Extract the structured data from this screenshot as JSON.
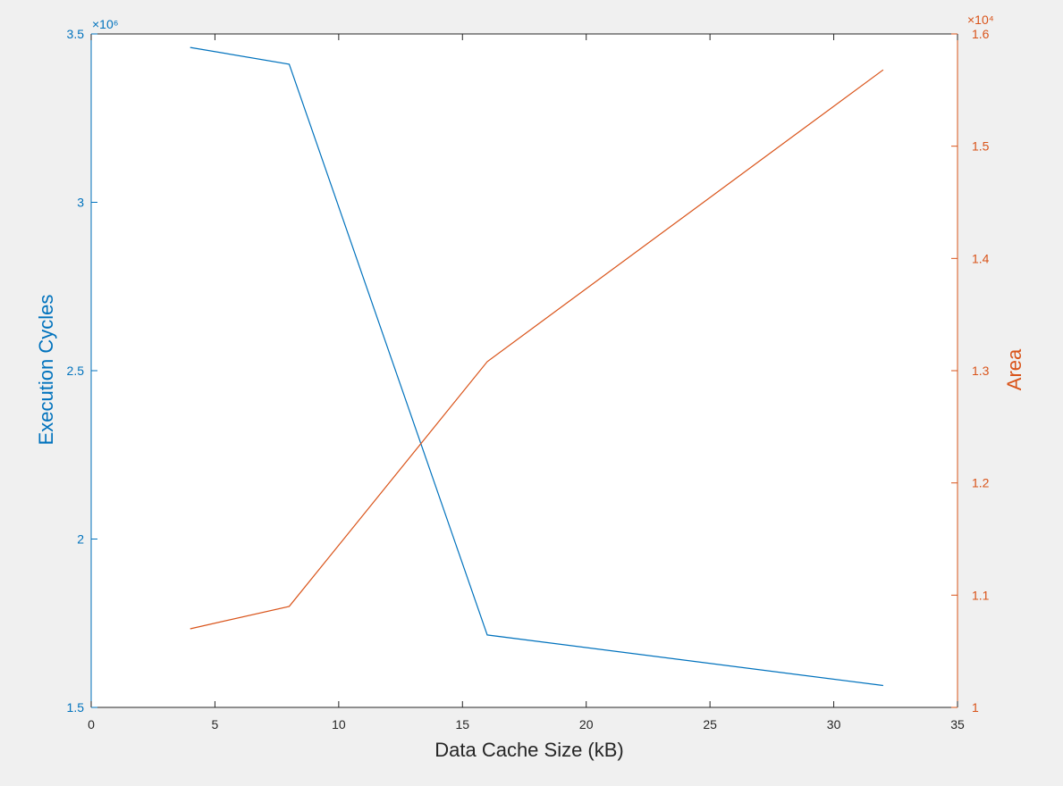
{
  "colors": {
    "left": "#0072bd",
    "right": "#d95319",
    "axis": "#262626",
    "plot_bg": "#ffffff",
    "figure_bg": "#f0f0f0"
  },
  "chart_data": {
    "type": "line",
    "xlabel": "Data Cache Size (kB)",
    "xlim": [
      0,
      35
    ],
    "xticks": [
      0,
      5,
      10,
      15,
      20,
      25,
      30,
      35
    ],
    "xtick_labels": [
      "0",
      "5",
      "10",
      "15",
      "20",
      "25",
      "30",
      "35"
    ],
    "grid": false,
    "axes": {
      "left": {
        "label": "Execution Cycles",
        "exponent_label": "×10⁶",
        "ylim": [
          1500000,
          3500000
        ],
        "ticks": [
          1500000,
          2000000,
          2500000,
          3000000,
          3500000
        ],
        "tick_labels": [
          "1.5",
          "2",
          "2.5",
          "3",
          "3.5"
        ]
      },
      "right": {
        "label": "Area",
        "exponent_label": "×10⁴",
        "ylim": [
          10000,
          16000
        ],
        "ticks": [
          10000,
          11000,
          12000,
          13000,
          14000,
          15000,
          16000
        ],
        "tick_labels": [
          "1",
          "1.1",
          "1.2",
          "1.3",
          "1.4",
          "1.5",
          "1.6"
        ]
      }
    },
    "series": [
      {
        "axis": "left",
        "color": "#0072bd",
        "x": [
          4,
          8,
          16,
          32
        ],
        "y": [
          3460000,
          3410000,
          1715000,
          1565000
        ]
      },
      {
        "axis": "right",
        "color": "#d95319",
        "x": [
          4,
          8,
          16,
          32
        ],
        "y": [
          10700,
          10900,
          13080,
          15680
        ]
      }
    ]
  }
}
